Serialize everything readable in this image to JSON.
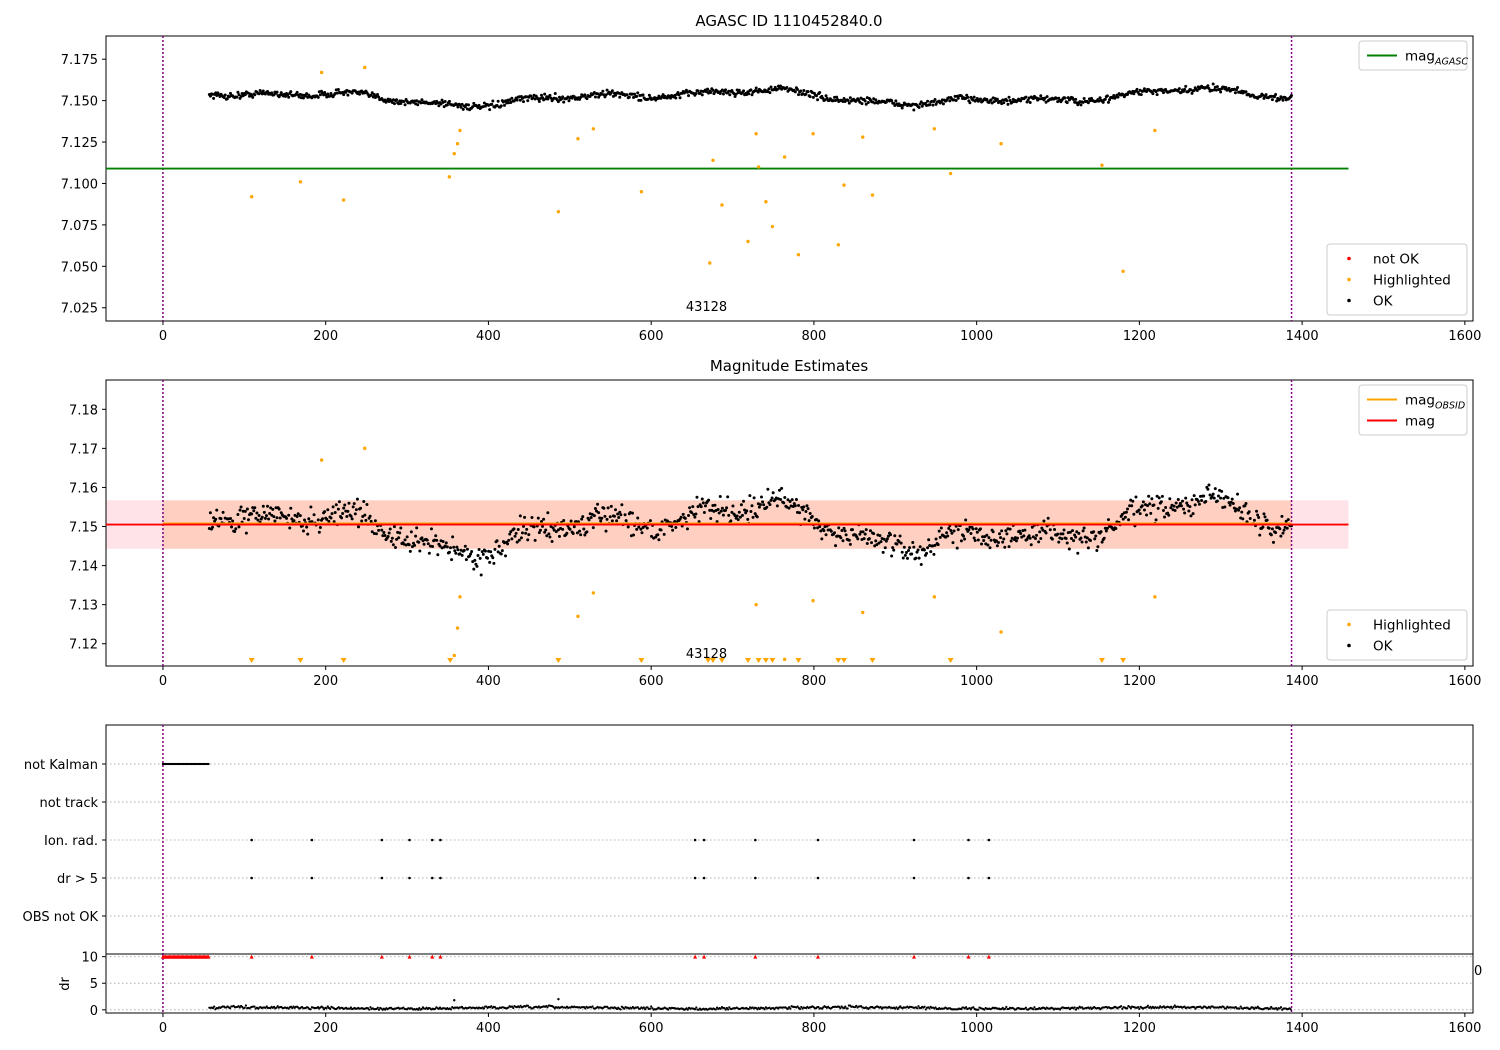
{
  "colors": {
    "ok": "#000000",
    "highlighted": "#ffa500",
    "not_ok": "#ff0000",
    "mag_agasc": "#008000",
    "mag_obsid": "#ffa500",
    "mag": "#ff0000",
    "band_fill": "#ffc0cb",
    "vline": "#800080"
  },
  "chart_data": [
    {
      "type": "scatter",
      "title": "AGASC ID 1110452840.0",
      "annotation": "43128",
      "annotation_pos": {
        "x": 668,
        "y": 7.023
      },
      "xlim": [
        -70,
        1610
      ],
      "ylim": [
        7.017,
        7.189
      ],
      "xticks": [
        0,
        200,
        400,
        600,
        800,
        1000,
        1200,
        1400,
        1600
      ],
      "yticks": [
        7.025,
        7.05,
        7.075,
        7.1,
        7.125,
        7.15,
        7.175
      ],
      "ytick_labels": [
        "7.025",
        "7.050",
        "7.075",
        "7.100",
        "7.125",
        "7.150",
        "7.175"
      ],
      "vlines": [
        0,
        1387
      ],
      "hlines": [
        {
          "y": 7.109,
          "x0": -70,
          "x1": 1457,
          "color": "#008000"
        }
      ],
      "ok_band": {
        "x0": 57,
        "x1": 1387,
        "center": 7.152,
        "amp": 0.006,
        "noise": 0.004
      },
      "highlighted": [
        [
          109,
          7.092
        ],
        [
          169,
          7.101
        ],
        [
          195,
          7.167
        ],
        [
          222,
          7.09
        ],
        [
          248,
          7.17
        ],
        [
          352,
          7.104
        ],
        [
          358,
          7.118
        ],
        [
          362,
          7.124
        ],
        [
          365,
          7.132
        ],
        [
          486,
          7.083
        ],
        [
          510,
          7.127
        ],
        [
          529,
          7.133
        ],
        [
          588,
          7.095
        ],
        [
          672,
          7.052
        ],
        [
          676,
          7.114
        ],
        [
          687,
          7.087
        ],
        [
          719,
          7.065
        ],
        [
          729,
          7.13
        ],
        [
          732,
          7.11
        ],
        [
          741,
          7.089
        ],
        [
          749,
          7.074
        ],
        [
          764,
          7.116
        ],
        [
          781,
          7.057
        ],
        [
          799,
          7.13
        ],
        [
          830,
          7.063
        ],
        [
          837,
          7.099
        ],
        [
          860,
          7.128
        ],
        [
          872,
          7.093
        ],
        [
          948,
          7.133
        ],
        [
          968,
          7.106
        ],
        [
          1030,
          7.124
        ],
        [
          1154,
          7.111
        ],
        [
          1180,
          7.047
        ],
        [
          1219,
          7.132
        ]
      ],
      "legends": [
        {
          "entries": [
            {
              "label": "mag",
              "sub": "AGASC",
              "kind": "line",
              "color": "#008000"
            }
          ],
          "loc": "upper right"
        },
        {
          "entries": [
            {
              "label": "not OK",
              "kind": "dot",
              "color": "#ff0000"
            },
            {
              "label": "Highlighted",
              "kind": "dot",
              "color": "#ffa500"
            },
            {
              "label": "OK",
              "kind": "dot",
              "color": "#000000"
            }
          ],
          "loc": "lower right"
        }
      ]
    },
    {
      "type": "scatter",
      "title": "Magnitude Estimates",
      "annotation": "43128",
      "annotation_pos": {
        "x": 668,
        "y": 7.1163
      },
      "xlim": [
        -70,
        1610
      ],
      "ylim": [
        7.1143,
        7.1875
      ],
      "xticks": [
        0,
        200,
        400,
        600,
        800,
        1000,
        1200,
        1400,
        1600
      ],
      "yticks": [
        7.12,
        7.13,
        7.14,
        7.15,
        7.16,
        7.17,
        7.18
      ],
      "ytick_labels": [
        "7.12",
        "7.13",
        "7.14",
        "7.15",
        "7.16",
        "7.17",
        "7.18"
      ],
      "vlines": [
        0,
        1387
      ],
      "band": {
        "y0": 7.1443,
        "y1": 7.1567,
        "x0": -70,
        "x1": 1457,
        "inner_x0": 0,
        "inner_x1": 1387
      },
      "hlines": [
        {
          "y": 7.1508,
          "x0": 0,
          "x1": 1387,
          "color": "#ffa500"
        },
        {
          "y": 7.1505,
          "x0": -70,
          "x1": 1457,
          "color": "#ff0000"
        }
      ],
      "ok_band": {
        "x0": 57,
        "x1": 1387,
        "center": 7.15,
        "amp": 0.008,
        "noise": 0.006
      },
      "highlighted": [
        [
          195,
          7.167
        ],
        [
          248,
          7.17
        ],
        [
          358,
          7.117
        ],
        [
          362,
          7.124
        ],
        [
          365,
          7.132
        ],
        [
          510,
          7.127
        ],
        [
          529,
          7.133
        ],
        [
          729,
          7.13
        ],
        [
          764,
          7.116
        ],
        [
          799,
          7.131
        ],
        [
          860,
          7.128
        ],
        [
          948,
          7.132
        ],
        [
          1030,
          7.123
        ],
        [
          1219,
          7.132
        ]
      ],
      "below_limit": [
        109,
        169,
        222,
        353,
        486,
        588,
        670,
        676,
        687,
        719,
        732,
        741,
        749,
        781,
        830,
        837,
        872,
        968,
        1154,
        1180
      ],
      "legends": [
        {
          "entries": [
            {
              "label": "mag",
              "sub": "OBSID",
              "kind": "line",
              "color": "#ffa500"
            },
            {
              "label": "mag",
              "kind": "line",
              "color": "#ff0000"
            }
          ],
          "loc": "upper right"
        },
        {
          "entries": [
            {
              "label": "Highlighted",
              "kind": "dot",
              "color": "#ffa500"
            },
            {
              "label": "OK",
              "kind": "dot",
              "color": "#000000"
            }
          ],
          "loc": "lower right"
        }
      ]
    },
    {
      "type": "scatter",
      "title": "",
      "categories": [
        "not Kalman",
        "not track",
        "Ion. rad.",
        "dr > 5",
        "OBS not OK"
      ],
      "xlim": [
        -70,
        1610
      ],
      "vlines": [
        0,
        1387
      ],
      "not_kalman_range": [
        0,
        57
      ],
      "flag_times": [
        109,
        183,
        269,
        303,
        331,
        341,
        654,
        665,
        728,
        805,
        923,
        990,
        1015
      ]
    },
    {
      "type": "scatter",
      "title": "",
      "ylabel": "dr",
      "yticks": [
        0,
        5,
        10
      ],
      "ytick_labels": [
        "0",
        "5",
        "10"
      ],
      "ylim": [
        -0.6,
        10.5
      ],
      "xlim": [
        -70,
        1610
      ],
      "xticks": [
        0,
        200,
        400,
        600,
        800,
        1000,
        1200,
        1400,
        1600
      ],
      "edge_label": "0",
      "vlines": [
        0,
        1387
      ],
      "capped_value": 10,
      "capped_times": [
        109,
        183,
        269,
        303,
        331,
        341,
        654,
        665,
        728,
        805,
        923,
        990,
        1015
      ],
      "dr_range": [
        57,
        1387
      ],
      "dr_extra": [
        [
          358,
          1.8
        ],
        [
          486,
          2.0
        ]
      ]
    }
  ]
}
